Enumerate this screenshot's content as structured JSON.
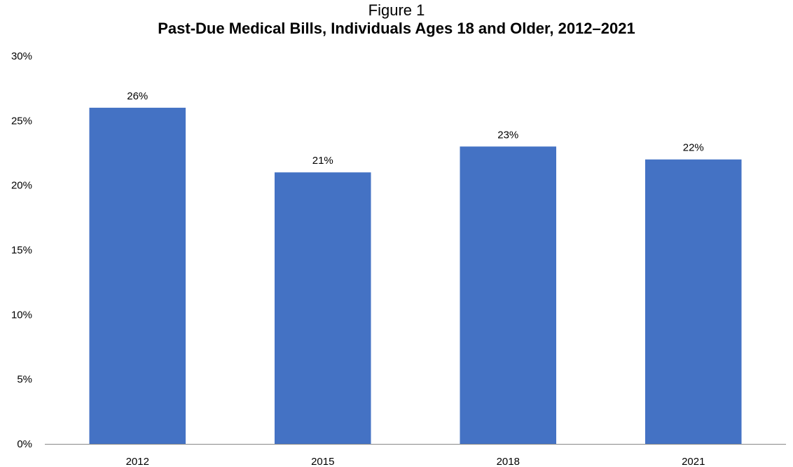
{
  "figure_label": "Figure 1",
  "title": "Past-Due Medical Bills, Individuals Ages 18 and Older, 2012–2021",
  "chart_data": {
    "type": "bar",
    "title": "Past-Due Medical Bills, Individuals Ages 18 and Older, 2012–2021",
    "xlabel": "",
    "ylabel": "",
    "categories": [
      "2012",
      "2015",
      "2018",
      "2021"
    ],
    "values": [
      26,
      21,
      23,
      22
    ],
    "data_labels": [
      "26%",
      "21%",
      "23%",
      "22%"
    ],
    "ylim": [
      0,
      30
    ],
    "yticks": [
      0,
      5,
      10,
      15,
      20,
      25,
      30
    ],
    "ytick_labels": [
      "0%",
      "5%",
      "10%",
      "15%",
      "20%",
      "25%",
      "30%"
    ],
    "grid": false,
    "legend": "none",
    "bar_color": "#4472C4"
  }
}
